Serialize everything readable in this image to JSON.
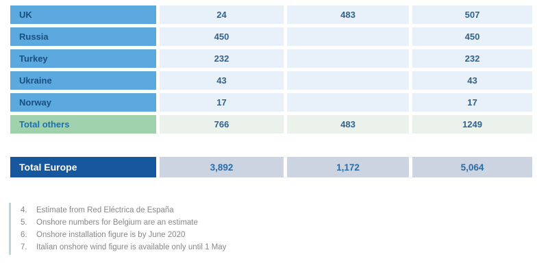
{
  "table": {
    "rows": [
      {
        "kind": "country",
        "label": "UK",
        "values": [
          "24",
          "483",
          "507"
        ]
      },
      {
        "kind": "country",
        "label": "Russia",
        "values": [
          "450",
          "",
          "450"
        ]
      },
      {
        "kind": "country",
        "label": "Turkey",
        "values": [
          "232",
          "",
          "232"
        ]
      },
      {
        "kind": "country",
        "label": "Ukraine",
        "values": [
          "43",
          "",
          "43"
        ]
      },
      {
        "kind": "country",
        "label": "Norway",
        "values": [
          "17",
          "",
          "17"
        ]
      },
      {
        "kind": "subtotal",
        "label": "Total others",
        "values": [
          "766",
          "483",
          "1249"
        ]
      }
    ],
    "total": {
      "label": "Total Europe",
      "values": [
        "3,892",
        "1,172",
        "5,064"
      ]
    }
  },
  "notes": [
    {
      "number": "4.",
      "text": "Estimate from Red Eléctrica de España"
    },
    {
      "number": "5.",
      "text": "Onshore numbers for Belgium are an estimate"
    },
    {
      "number": "6.",
      "text": "Onshore installation figure is by June 2020"
    },
    {
      "number": "7.",
      "text": "Italian onshore wind figure is available only until 1 May"
    }
  ],
  "colors": {
    "country_label_bg": "#5ba9de",
    "country_label_text": "#1a4f80",
    "value_cell_bg": "#e8f0f9",
    "value_text": "#2f6291",
    "subtotal_label_bg": "#a0d1ad",
    "subtotal_label_text": "#1e6fad",
    "subtotal_value_bg": "#ebf2ec",
    "total_label_bg": "#16579e",
    "total_label_text": "#ffffff",
    "total_value_bg": "#ccd3e1",
    "total_value_text": "#2a6ca6",
    "note_text": "#85878a",
    "note_bar": "#b5d8dc"
  }
}
